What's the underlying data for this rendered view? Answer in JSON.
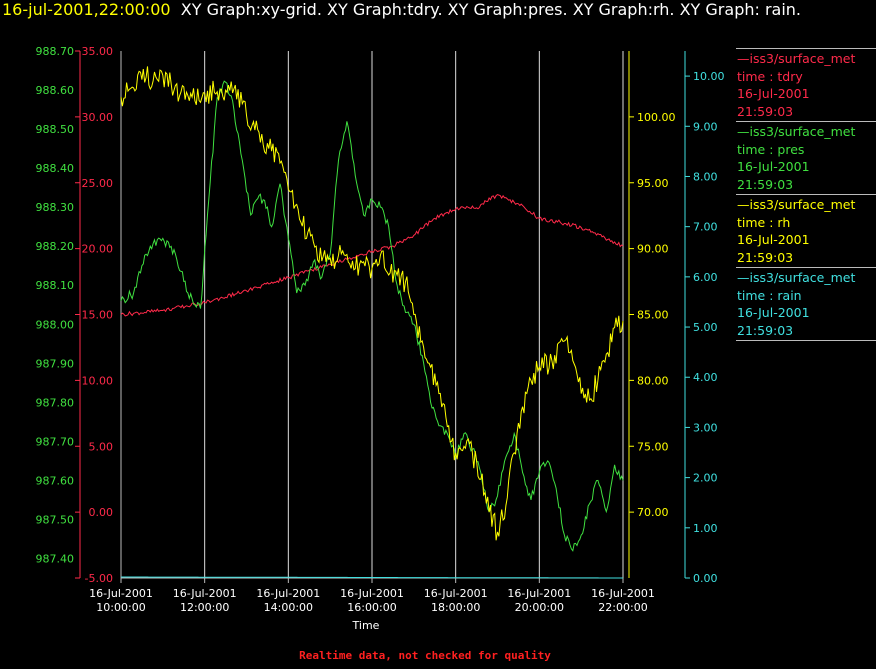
{
  "header": {
    "timestamp": "16-jul-2001,22:00:00",
    "titles": "XY Graph:xy-grid.  XY Graph:tdry.  XY Graph:pres.  XY Graph:rh.  XY Graph: rain."
  },
  "quality_note": "Realtime data, not checked for quality",
  "chart_data": {
    "type": "line",
    "xlabel": "Time",
    "x_ticks": [
      {
        "date": "16-Jul-2001",
        "time": "10:00:00"
      },
      {
        "date": "16-Jul-2001",
        "time": "12:00:00"
      },
      {
        "date": "16-Jul-2001",
        "time": "14:00:00"
      },
      {
        "date": "16-Jul-2001",
        "time": "16:00:00"
      },
      {
        "date": "16-Jul-2001",
        "time": "18:00:00"
      },
      {
        "date": "16-Jul-2001",
        "time": "20:00:00"
      },
      {
        "date": "16-Jul-2001",
        "time": "22:00:00"
      }
    ],
    "xlim": [
      "16-Jul-2001 10:00:00",
      "16-Jul-2001 22:00:00"
    ],
    "grid": "vertical lines at each x tick",
    "legend_position": "right",
    "axes": [
      {
        "id": "tdry",
        "color": "#ff2a4a",
        "ylim": [
          -5,
          35
        ],
        "ticks": [
          "-5.00",
          "0.00",
          "5.00",
          "10.00",
          "15.00",
          "20.00",
          "25.00",
          "30.00",
          "35.00"
        ]
      },
      {
        "id": "pres",
        "color": "#40e040",
        "ylim": [
          987.35,
          988.7
        ],
        "ticks": [
          "987.40",
          "987.50",
          "987.60",
          "987.70",
          "987.80",
          "987.90",
          "988.00",
          "988.10",
          "988.20",
          "988.30",
          "988.40",
          "988.50",
          "988.60",
          "988.70"
        ]
      },
      {
        "id": "rh",
        "color": "#ffff00",
        "ylim": [
          65,
          105
        ],
        "ticks": [
          "70.00",
          "75.00",
          "80.00",
          "85.00",
          "90.00",
          "95.00",
          "100.00"
        ]
      },
      {
        "id": "rain",
        "color": "#40e0e0",
        "ylim": [
          0,
          10.5
        ],
        "ticks": [
          "0.00",
          "1.00",
          "2.00",
          "3.00",
          "4.00",
          "5.00",
          "6.00",
          "7.00",
          "8.00",
          "9.00",
          "10.00"
        ]
      }
    ],
    "series": [
      {
        "axis": "tdry",
        "color": "#ff2a4a",
        "legend": [
          "—iss3/surface_met",
          "time : tdry",
          "16-Jul-2001",
          "21:59:03"
        ],
        "points": [
          [
            10.0,
            15.0
          ],
          [
            11.0,
            15.3
          ],
          [
            12.0,
            15.9
          ],
          [
            13.0,
            16.8
          ],
          [
            14.0,
            17.8
          ],
          [
            15.0,
            18.8
          ],
          [
            16.0,
            19.8
          ],
          [
            16.5,
            20.2
          ],
          [
            17.0,
            21.0
          ],
          [
            17.5,
            22.3
          ],
          [
            18.0,
            23.0
          ],
          [
            18.5,
            23.1
          ],
          [
            19.0,
            24.1
          ],
          [
            19.5,
            23.4
          ],
          [
            20.0,
            22.3
          ],
          [
            20.5,
            22.0
          ],
          [
            21.0,
            21.6
          ],
          [
            21.5,
            20.9
          ],
          [
            22.0,
            20.2
          ]
        ]
      },
      {
        "axis": "pres",
        "color": "#40e040",
        "legend": [
          "—iss3/surface_met",
          "time : pres",
          "16-Jul-2001",
          "21:59:03"
        ],
        "points": [
          [
            10.0,
            988.06
          ],
          [
            10.3,
            988.08
          ],
          [
            10.5,
            988.15
          ],
          [
            10.7,
            988.2
          ],
          [
            11.0,
            988.22
          ],
          [
            11.3,
            988.18
          ],
          [
            11.6,
            988.08
          ],
          [
            11.9,
            988.04
          ],
          [
            12.1,
            988.32
          ],
          [
            12.3,
            988.58
          ],
          [
            12.5,
            988.62
          ],
          [
            12.7,
            988.55
          ],
          [
            12.9,
            988.42
          ],
          [
            13.1,
            988.28
          ],
          [
            13.3,
            988.33
          ],
          [
            13.5,
            988.3
          ],
          [
            13.6,
            988.25
          ],
          [
            13.8,
            988.36
          ],
          [
            14.0,
            988.22
          ],
          [
            14.2,
            988.08
          ],
          [
            14.4,
            988.1
          ],
          [
            14.6,
            988.16
          ],
          [
            14.8,
            988.12
          ],
          [
            15.0,
            988.18
          ],
          [
            15.2,
            988.42
          ],
          [
            15.4,
            988.52
          ],
          [
            15.6,
            988.38
          ],
          [
            15.8,
            988.28
          ],
          [
            16.0,
            988.32
          ],
          [
            16.2,
            988.3
          ],
          [
            16.4,
            988.25
          ],
          [
            16.6,
            988.1
          ],
          [
            16.8,
            988.03
          ],
          [
            17.0,
            988.0
          ],
          [
            17.2,
            987.92
          ],
          [
            17.4,
            987.8
          ],
          [
            17.6,
            987.74
          ],
          [
            17.8,
            987.72
          ],
          [
            18.0,
            987.66
          ],
          [
            18.2,
            987.72
          ],
          [
            18.4,
            987.68
          ],
          [
            18.6,
            987.62
          ],
          [
            18.8,
            987.52
          ],
          [
            19.0,
            987.56
          ],
          [
            19.2,
            987.66
          ],
          [
            19.4,
            987.72
          ],
          [
            19.6,
            987.62
          ],
          [
            19.8,
            987.55
          ],
          [
            20.0,
            987.62
          ],
          [
            20.2,
            987.65
          ],
          [
            20.4,
            987.58
          ],
          [
            20.6,
            987.46
          ],
          [
            20.8,
            987.42
          ],
          [
            21.0,
            987.46
          ],
          [
            21.2,
            987.54
          ],
          [
            21.4,
            987.6
          ],
          [
            21.6,
            987.52
          ],
          [
            21.8,
            987.64
          ],
          [
            22.0,
            987.6
          ]
        ]
      },
      {
        "axis": "rh",
        "color": "#ffff00",
        "legend": [
          "—iss3/surface_met",
          "time : rh",
          "16-Jul-2001",
          "21:59:03"
        ],
        "points": [
          [
            10.0,
            101.5
          ],
          [
            10.3,
            102.2
          ],
          [
            10.6,
            103.0
          ],
          [
            10.9,
            102.7
          ],
          [
            11.2,
            102.5
          ],
          [
            11.4,
            101.6
          ],
          [
            11.7,
            101.5
          ],
          [
            12.0,
            101.8
          ],
          [
            12.3,
            101.9
          ],
          [
            12.6,
            102.0
          ],
          [
            12.9,
            101.0
          ],
          [
            13.2,
            99.0
          ],
          [
            13.5,
            98.0
          ],
          [
            13.8,
            96.5
          ],
          [
            14.0,
            94.5
          ],
          [
            14.3,
            92.0
          ],
          [
            14.6,
            90.5
          ],
          [
            14.9,
            89.0
          ],
          [
            15.2,
            89.5
          ],
          [
            15.5,
            88.5
          ],
          [
            15.8,
            89.0
          ],
          [
            16.0,
            88.5
          ],
          [
            16.2,
            89.5
          ],
          [
            16.4,
            88.0
          ],
          [
            16.6,
            88.0
          ],
          [
            16.8,
            87.5
          ],
          [
            17.0,
            85.0
          ],
          [
            17.2,
            83.0
          ],
          [
            17.4,
            81.0
          ],
          [
            17.6,
            79.0
          ],
          [
            17.8,
            76.5
          ],
          [
            18.0,
            74.5
          ],
          [
            18.2,
            75.0
          ],
          [
            18.4,
            74.5
          ],
          [
            18.6,
            72.5
          ],
          [
            18.8,
            70.0
          ],
          [
            19.0,
            68.5
          ],
          [
            19.2,
            70.5
          ],
          [
            19.4,
            74.5
          ],
          [
            19.6,
            78.0
          ],
          [
            19.8,
            80.0
          ],
          [
            20.0,
            81.0
          ],
          [
            20.3,
            81.5
          ],
          [
            20.6,
            83.0
          ],
          [
            20.8,
            81.5
          ],
          [
            21.0,
            79.0
          ],
          [
            21.2,
            78.5
          ],
          [
            21.4,
            80.0
          ],
          [
            21.6,
            82.0
          ],
          [
            21.8,
            84.0
          ],
          [
            22.0,
            84.5
          ]
        ]
      },
      {
        "axis": "rain",
        "color": "#40e0e0",
        "legend": [
          "—iss3/surface_met",
          "time : rain",
          "16-Jul-2001",
          "21:59:03"
        ],
        "points": [
          [
            10.0,
            0.02
          ],
          [
            22.0,
            0.0
          ]
        ]
      }
    ]
  }
}
